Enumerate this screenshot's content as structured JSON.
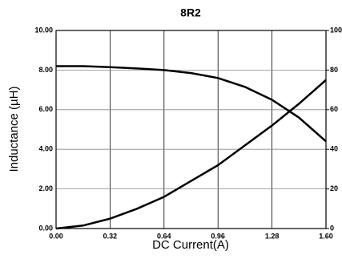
{
  "chart_data": {
    "type": "line",
    "title": "8R2",
    "xlabel": "DC Current(A)",
    "ylabel": "Inductance (µH)",
    "x": [
      0,
      0.16,
      0.32,
      0.48,
      0.64,
      0.8,
      0.96,
      1.12,
      1.28,
      1.44,
      1.6
    ],
    "series": [
      {
        "color": "#000000",
        "values": [
          8.2,
          8.2,
          8.15,
          8.08,
          8.0,
          7.85,
          7.6,
          7.15,
          6.5,
          5.6,
          4.4
        ]
      },
      {
        "color": "#000000",
        "axis": "y2",
        "values": [
          0,
          1.5,
          5,
          10,
          16,
          24,
          32,
          42,
          52,
          63,
          75
        ]
      }
    ],
    "xlim": [
      0,
      1.6
    ],
    "xticks": [
      {
        "value": 0,
        "label": "0.00"
      },
      0.32,
      0.64,
      0.96,
      1.28,
      {
        "value": 1.6,
        "label": "1.60"
      }
    ],
    "ylim": [
      0,
      10
    ],
    "yticks": [
      {
        "value": 0,
        "label": "0.00"
      },
      {
        "value": 2,
        "label": "2.00"
      },
      {
        "value": 4,
        "label": "4.00"
      },
      {
        "value": 6,
        "label": "6.00"
      },
      {
        "value": 8,
        "label": "8.00"
      },
      {
        "value": 10,
        "label": "10.00"
      }
    ],
    "y2lim": [
      0,
      100
    ],
    "y2ticks": [
      0,
      20,
      40,
      60,
      80,
      100
    ],
    "grid": true
  }
}
